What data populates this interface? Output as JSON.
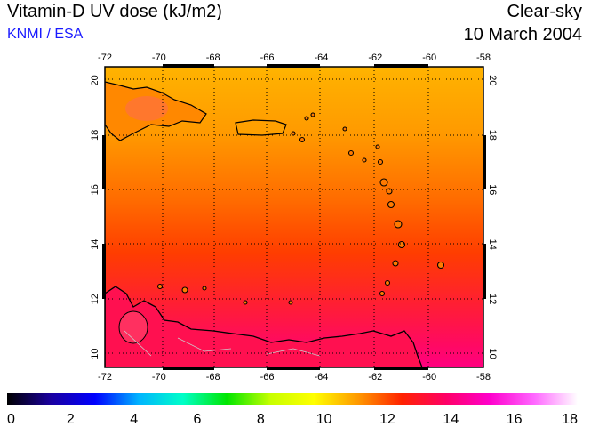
{
  "header": {
    "title": "Vitamin-D UV dose (kJ/m2)",
    "credit": "KNMI / ESA",
    "condition": "Clear-sky",
    "date": "10 March 2004"
  },
  "map": {
    "lon_ticks": [
      "-72",
      "-70",
      "-68",
      "-66",
      "-64",
      "-62",
      "-60",
      "-58"
    ],
    "lat_ticks": [
      "20",
      "18",
      "16",
      "14",
      "12",
      "10"
    ],
    "lon_range": [
      -72,
      -58
    ],
    "lat_range": [
      9.5,
      20.5
    ],
    "grid": true
  },
  "colorbar": {
    "labels": [
      "0",
      "2",
      "4",
      "6",
      "8",
      "10",
      "12",
      "14",
      "16",
      "18"
    ],
    "range": [
      0,
      18
    ],
    "colors": [
      "#000000",
      "#1a00a0",
      "#0000ff",
      "#00b4ff",
      "#00ffc8",
      "#00e600",
      "#c8ff00",
      "#ffff00",
      "#ff9900",
      "#ff2200",
      "#ff0066",
      "#ff00cc",
      "#ff66ff",
      "#ffffff"
    ]
  }
}
